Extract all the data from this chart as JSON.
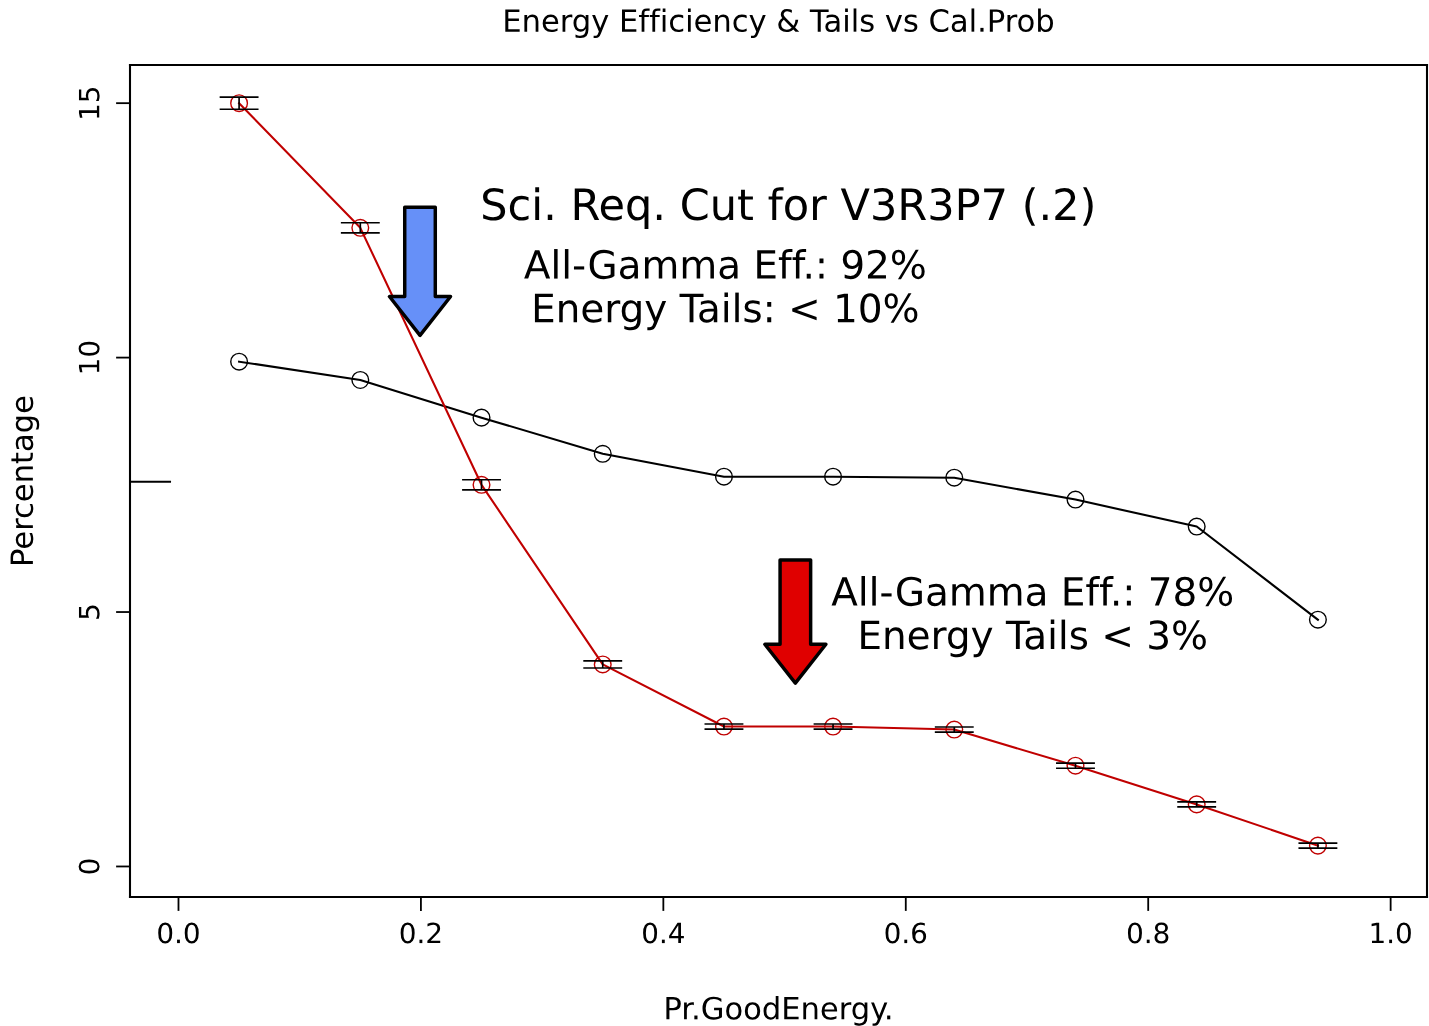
{
  "chart_data": {
    "type": "line",
    "title": "Energy Efficiency & Tails vs Cal.Prob",
    "xlabel": "Pr.GoodEnergy.",
    "ylabel": "Percentage",
    "x": [
      0.05,
      0.15,
      0.25,
      0.35,
      0.45,
      0.54,
      0.64,
      0.74,
      0.84,
      0.94
    ],
    "series": [
      {
        "color": "#000000",
        "values": [
          9.92,
          9.56,
          8.82,
          8.11,
          7.66,
          7.66,
          7.64,
          7.21,
          6.68,
          4.85
        ]
      },
      {
        "color": "#c00000",
        "values": [
          15.0,
          12.55,
          7.5,
          3.97,
          2.75,
          2.75,
          2.69,
          1.98,
          1.22,
          0.41
        ],
        "errors": [
          0.12,
          0.1,
          0.1,
          0.07,
          0.05,
          0.05,
          0.05,
          0.05,
          0.05,
          0.05
        ]
      },
      {
        "type": "line",
        "color": "#000000",
        "marker": "none",
        "x": [
          -0.04,
          -0.007
        ],
        "values": [
          7.56,
          7.56
        ]
      }
    ],
    "xlim": [
      -0.04,
      1.03
    ],
    "ylim": [
      -0.6,
      15.75
    ],
    "xticks": [
      {
        "value": 0,
        "label": "0.0"
      },
      0.2,
      0.4,
      0.6,
      0.8,
      {
        "value": 1,
        "label": "1.0"
      }
    ],
    "yticks": [
      0,
      5,
      10,
      15
    ],
    "marker": "circle",
    "grid": false,
    "legend": false,
    "annotations": [
      "Sci. Req. Cut for V3R3P7 (.2)",
      "All-Gamma Eff.: 92%\nEnergy Tails: < 10%",
      "All-Gamma Eff.: 78%\nEnergy Tails < 3%"
    ]
  }
}
